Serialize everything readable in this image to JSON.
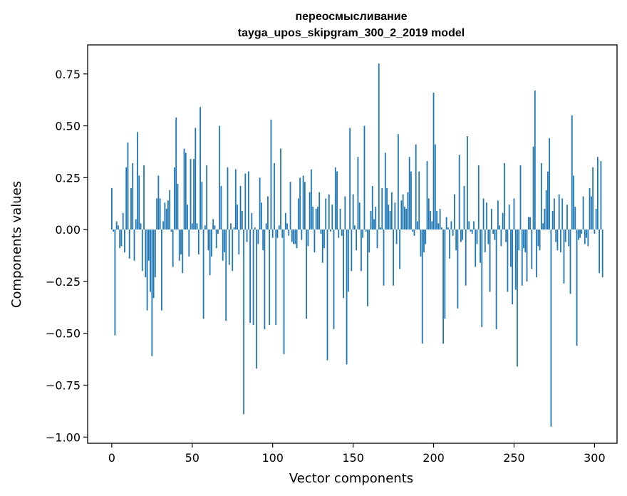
{
  "chart_data": {
    "type": "bar",
    "title_line1": "переосмысливание",
    "title_line2": "tayga_upos_skipgram_300_2_2019 model",
    "xlabel": "Vector components",
    "ylabel": "Components values",
    "xlim": [
      -15,
      314
    ],
    "ylim": [
      -1.03,
      0.89
    ],
    "xticks": [
      0,
      50,
      100,
      150,
      200,
      250,
      300
    ],
    "xtick_labels": [
      "0",
      "50",
      "100",
      "150",
      "200",
      "250",
      "300"
    ],
    "yticks": [
      -1.0,
      -0.75,
      -0.5,
      -0.25,
      0.0,
      0.25,
      0.5,
      0.75
    ],
    "ytick_labels": [
      "−1.00",
      "−0.75",
      "−0.50",
      "−0.25",
      "0.00",
      "0.25",
      "0.50",
      "0.75"
    ],
    "grid": false,
    "bar_color": "#1f77b4",
    "series": [
      {
        "values": [
          0.2,
          -0.01,
          -0.51,
          0.04,
          0.02,
          -0.09,
          -0.08,
          0.08,
          -0.11,
          0.3,
          0.42,
          -0.14,
          0.2,
          0.32,
          -0.15,
          0.05,
          0.47,
          0.26,
          0.03,
          -0.2,
          0.31,
          -0.23,
          -0.39,
          -0.15,
          -0.3,
          -0.61,
          -0.33,
          -0.23,
          0.15,
          0.26,
          0.15,
          -0.39,
          0.04,
          0.13,
          0.1,
          0.14,
          0.19,
          -0.01,
          -0.18,
          0.3,
          0.54,
          0.22,
          -0.15,
          -0.12,
          -0.21,
          0.39,
          0.37,
          0.12,
          -0.13,
          0.34,
          0.03,
          0.34,
          0.49,
          0.03,
          -0.12,
          0.59,
          0.23,
          -0.43,
          0.02,
          0.31,
          -0.1,
          -0.22,
          -0.13,
          0.05,
          0.02,
          -0.09,
          -0.02,
          0.5,
          0.21,
          -0.15,
          -0.11,
          -0.44,
          0.3,
          -0.17,
          0.03,
          -0.2,
          0.01,
          0.29,
          0.12,
          -0.12,
          0.21,
          0.09,
          -0.89,
          0.27,
          -0.06,
          0.28,
          -0.45,
          0.08,
          -0.46,
          0.01,
          -0.67,
          -0.07,
          0.25,
          0.13,
          -0.1,
          -0.48,
          0.03,
          0.16,
          -0.46,
          0.53,
          -0.04,
          0.32,
          -0.46,
          -0.04,
          0.02,
          0.39,
          -0.04,
          -0.6,
          0.08,
          0.03,
          -0.03,
          0.23,
          -0.06,
          -0.07,
          -0.07,
          -0.09,
          0.15,
          0.25,
          -0.05,
          0.26,
          0.23,
          -0.43,
          -0.08,
          0.18,
          0.29,
          0.11,
          -0.11,
          0.1,
          0.11,
          0.18,
          -0.02,
          -0.16,
          -0.09,
          0.15,
          -0.63,
          0.17,
          -0.01,
          0.12,
          -0.48,
          0.3,
          0.28,
          -0.04,
          0.1,
          -0.03,
          -0.33,
          0.16,
          -0.65,
          -0.3,
          0.49,
          -0.2,
          0.17,
          0.02,
          -0.1,
          0.35,
          0.13,
          -0.2,
          -0.04,
          0.5,
          -0.01,
          -0.37,
          -0.11,
          0.09,
          0.21,
          0.05,
          0.11,
          -0.09,
          0.8,
          0.01,
          0.2,
          -0.27,
          0.37,
          0.2,
          0.12,
          0.09,
          0.18,
          -0.27,
          0.13,
          -0.07,
          0.46,
          -0.19,
          0.14,
          0.17,
          0.11,
          0.1,
          0.18,
          0.35,
          0.28,
          -0.01,
          -0.03,
          0.41,
          0.04,
          0.28,
          -0.13,
          -0.55,
          -0.11,
          -0.07,
          0.33,
          0.15,
          0.09,
          0.04,
          0.66,
          0.41,
          0.09,
          0.03,
          0.1,
          0.01,
          -0.55,
          -0.43,
          0.06,
          0.01,
          -0.14,
          0.04,
          -0.03,
          0.17,
          -0.1,
          -0.38,
          0.36,
          -0.06,
          -0.05,
          0.21,
          -0.27,
          0.45,
          0.04,
          -0.01,
          -0.02,
          0.04,
          -0.18,
          -0.07,
          0.31,
          -0.16,
          -0.47,
          0.15,
          -0.11,
          0.13,
          -0.07,
          -0.3,
          0.1,
          -0.02,
          -0.05,
          -0.48,
          0.14,
          0.02,
          -0.08,
          0.08,
          0.32,
          -0.06,
          -0.3,
          0.12,
          -0.18,
          -0.36,
          0.15,
          -0.29,
          -0.66,
          -0.1,
          0.31,
          -0.27,
          -0.09,
          -0.11,
          -0.25,
          0.06,
          0.06,
          -0.19,
          0.4,
          0.67,
          -0.23,
          -0.08,
          -0.1,
          0.32,
          0.03,
          0.1,
          0.19,
          0.28,
          0.44,
          -0.95,
          0.09,
          0.15,
          -0.06,
          -0.1,
          0.17,
          -0.11,
          0.15,
          -0.26,
          -0.06,
          0.12,
          -0.08,
          -0.31,
          0.55,
          0.26,
          0.11,
          -0.56,
          -0.05,
          -0.04,
          -0.02,
          0.16,
          -0.07,
          -0.04,
          -0.08,
          0.2,
          0.16,
          0.3,
          -0.02,
          0.1,
          0.35,
          -0.21,
          0.33,
          -0.23
        ]
      }
    ]
  }
}
